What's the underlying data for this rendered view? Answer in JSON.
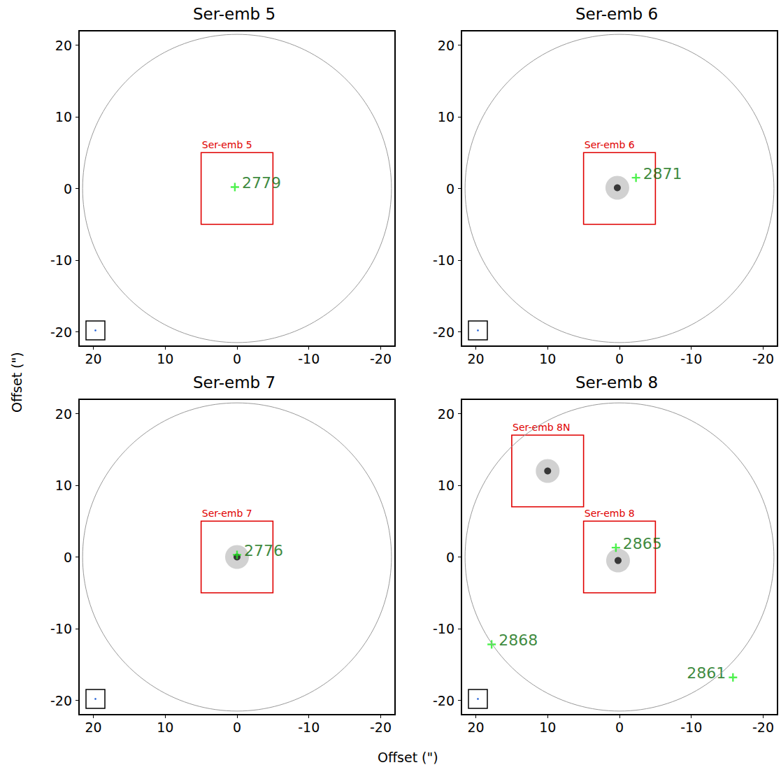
{
  "chart_data": {
    "type": "scatter",
    "xlabel": "Offset (\")",
    "ylabel": "Offset (\")",
    "grid": false,
    "panels": [
      {
        "title": "Ser-emb 5",
        "xlim": [
          22,
          -22
        ],
        "ylim": [
          -22,
          22
        ],
        "xticks": [
          20,
          10,
          0,
          -10,
          -20
        ],
        "yticks": [
          -20,
          -10,
          0,
          10,
          20
        ],
        "field_radius": 21.5,
        "boxes": [
          {
            "label": "Ser-emb 5",
            "x": [
              5,
              -5
            ],
            "y": [
              -5,
              5
            ]
          }
        ],
        "peaks": [],
        "sources": [
          {
            "label": "2779",
            "x": 0.3,
            "y": 0.2
          }
        ]
      },
      {
        "title": "Ser-emb 6",
        "xlim": [
          22,
          -22
        ],
        "ylim": [
          -22,
          22
        ],
        "xticks": [
          20,
          10,
          0,
          -10,
          -20
        ],
        "yticks": [
          -20,
          -10,
          0,
          10,
          20
        ],
        "field_radius": 21.5,
        "boxes": [
          {
            "label": "Ser-emb 6",
            "x": [
              5,
              -5
            ],
            "y": [
              -5,
              5
            ]
          }
        ],
        "peaks": [
          {
            "x": 0.3,
            "y": 0.1
          }
        ],
        "sources": [
          {
            "label": "2871",
            "x": -2.3,
            "y": 1.5
          }
        ]
      },
      {
        "title": "Ser-emb 7",
        "xlim": [
          22,
          -22
        ],
        "ylim": [
          -22,
          22
        ],
        "xticks": [
          20,
          10,
          0,
          -10,
          -20
        ],
        "yticks": [
          -20,
          -10,
          0,
          10,
          20
        ],
        "field_radius": 21.5,
        "boxes": [
          {
            "label": "Ser-emb 7",
            "x": [
              5,
              -5
            ],
            "y": [
              -5,
              5
            ]
          }
        ],
        "peaks": [
          {
            "x": 0,
            "y": 0
          }
        ],
        "sources": [
          {
            "label": "2776",
            "x": 0,
            "y": 0.3
          }
        ]
      },
      {
        "title": "Ser-emb 8",
        "xlim": [
          22,
          -22
        ],
        "ylim": [
          -22,
          22
        ],
        "xticks": [
          20,
          10,
          0,
          -10,
          -20
        ],
        "yticks": [
          -20,
          -10,
          0,
          10,
          20
        ],
        "field_radius": 21.5,
        "boxes": [
          {
            "label": "Ser-emb 8N",
            "x": [
              15,
              5
            ],
            "y": [
              7,
              17
            ]
          },
          {
            "label": "Ser-emb 8",
            "x": [
              5,
              -5
            ],
            "y": [
              -5,
              5
            ]
          }
        ],
        "peaks": [
          {
            "x": 0.2,
            "y": -0.5
          },
          {
            "x": 10,
            "y": 12
          }
        ],
        "sources": [
          {
            "label": "2865",
            "x": 0.5,
            "y": 1.3
          },
          {
            "label": "2868",
            "x": 17.8,
            "y": -12.2
          },
          {
            "label": "2861",
            "x": -15.8,
            "y": -16.8
          }
        ]
      }
    ]
  }
}
